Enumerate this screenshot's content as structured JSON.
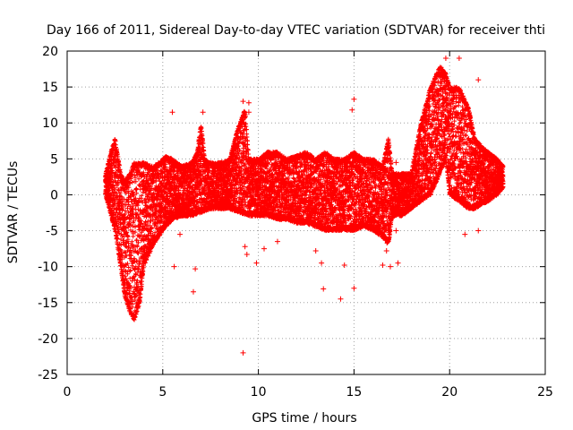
{
  "chart_data": {
    "type": "scatter",
    "title": "Day 166 of 2011, Sidereal Day-to-day VTEC variation (SDTVAR) for receiver thti",
    "xlabel": "GPS time / hours",
    "ylabel": "SDTVAR / TECUs",
    "xlim": [
      0,
      25
    ],
    "ylim": [
      -25,
      20
    ],
    "xticks": [
      0,
      5,
      10,
      15,
      20,
      25
    ],
    "yticks": [
      -25,
      -20,
      -15,
      -10,
      -5,
      0,
      5,
      10,
      15,
      20
    ],
    "grid": true,
    "marker": "+",
    "series": [
      {
        "name": "SDTVAR",
        "color": "#ff0000",
        "upper_envelope": [
          [
            2.0,
            3
          ],
          [
            2.3,
            6
          ],
          [
            2.5,
            8
          ],
          [
            2.8,
            3
          ],
          [
            3.0,
            2
          ],
          [
            3.3,
            3
          ],
          [
            3.5,
            4.5
          ],
          [
            4.0,
            4.5
          ],
          [
            4.5,
            4
          ],
          [
            4.8,
            4.5
          ],
          [
            5.0,
            5
          ],
          [
            5.2,
            5.5
          ],
          [
            5.5,
            5
          ],
          [
            6.0,
            4
          ],
          [
            6.5,
            4.5
          ],
          [
            6.8,
            6
          ],
          [
            7.0,
            10
          ],
          [
            7.2,
            5
          ],
          [
            7.5,
            4.5
          ],
          [
            8.0,
            4.5
          ],
          [
            8.5,
            5
          ],
          [
            8.8,
            8
          ],
          [
            9.0,
            10
          ],
          [
            9.3,
            12
          ],
          [
            9.5,
            5
          ],
          [
            10.0,
            5
          ],
          [
            10.5,
            6
          ],
          [
            11.0,
            6
          ],
          [
            11.5,
            5
          ],
          [
            12.0,
            5.5
          ],
          [
            12.5,
            6
          ],
          [
            13.0,
            5
          ],
          [
            13.5,
            6
          ],
          [
            14.0,
            5
          ],
          [
            14.5,
            5
          ],
          [
            15.0,
            6
          ],
          [
            15.5,
            5
          ],
          [
            16.0,
            5
          ],
          [
            16.5,
            4
          ],
          [
            16.8,
            8
          ],
          [
            17.0,
            3
          ],
          [
            17.5,
            3
          ],
          [
            18.0,
            3
          ],
          [
            18.5,
            10
          ],
          [
            19.0,
            15
          ],
          [
            19.5,
            18
          ],
          [
            19.8,
            17
          ],
          [
            20.0,
            15
          ],
          [
            20.5,
            15
          ],
          [
            21.0,
            12
          ],
          [
            21.3,
            8
          ],
          [
            21.6,
            7
          ],
          [
            22.0,
            6
          ],
          [
            22.5,
            5
          ],
          [
            22.8,
            4
          ]
        ],
        "lower_envelope": [
          [
            2.0,
            0
          ],
          [
            2.3,
            -3
          ],
          [
            2.5,
            -5
          ],
          [
            2.8,
            -10
          ],
          [
            3.0,
            -14
          ],
          [
            3.3,
            -16.5
          ],
          [
            3.5,
            -17.5
          ],
          [
            3.8,
            -15
          ],
          [
            4.0,
            -10
          ],
          [
            4.5,
            -7
          ],
          [
            5.0,
            -5
          ],
          [
            5.5,
            -3.5
          ],
          [
            6.0,
            -3
          ],
          [
            6.5,
            -3
          ],
          [
            7.0,
            -2.5
          ],
          [
            7.5,
            -2
          ],
          [
            8.0,
            -2
          ],
          [
            8.5,
            -2
          ],
          [
            9.0,
            -2.5
          ],
          [
            9.5,
            -3
          ],
          [
            10.0,
            -3
          ],
          [
            10.5,
            -3
          ],
          [
            11.0,
            -3.5
          ],
          [
            11.5,
            -3.5
          ],
          [
            12.0,
            -4
          ],
          [
            12.5,
            -4
          ],
          [
            13.0,
            -4.5
          ],
          [
            13.5,
            -5
          ],
          [
            14.0,
            -5
          ],
          [
            14.5,
            -5
          ],
          [
            15.0,
            -5
          ],
          [
            15.5,
            -4.5
          ],
          [
            16.0,
            -5
          ],
          [
            16.5,
            -6
          ],
          [
            16.8,
            -7
          ],
          [
            17.0,
            -3
          ],
          [
            17.5,
            -3
          ],
          [
            18.0,
            -2
          ],
          [
            18.5,
            -1
          ],
          [
            19.0,
            0
          ],
          [
            19.5,
            3
          ],
          [
            19.8,
            5
          ],
          [
            20.0,
            0
          ],
          [
            20.5,
            -1
          ],
          [
            21.0,
            -2
          ],
          [
            21.3,
            -2
          ],
          [
            21.6,
            -1.5
          ],
          [
            22.0,
            -1
          ],
          [
            22.5,
            0
          ],
          [
            22.8,
            1
          ]
        ],
        "outliers": [
          [
            5.5,
            11.5
          ],
          [
            7.1,
            11.5
          ],
          [
            9.2,
            13
          ],
          [
            9.5,
            12.8
          ],
          [
            9.5,
            11.5
          ],
          [
            15.0,
            13.3
          ],
          [
            14.9,
            11.8
          ],
          [
            19.8,
            19
          ],
          [
            20.5,
            19
          ],
          [
            21.5,
            16
          ],
          [
            9.2,
            -22
          ],
          [
            6.6,
            -13.5
          ],
          [
            6.7,
            -10.3
          ],
          [
            5.6,
            -10
          ],
          [
            9.9,
            -9.5
          ],
          [
            10.3,
            -7.5
          ],
          [
            9.3,
            -7.2
          ],
          [
            9.4,
            -8.3
          ],
          [
            11.0,
            -6.5
          ],
          [
            13.0,
            -7.8
          ],
          [
            13.3,
            -9.5
          ],
          [
            13.4,
            -13.1
          ],
          [
            14.3,
            -14.5
          ],
          [
            14.5,
            -9.8
          ],
          [
            15.0,
            -13.0
          ],
          [
            16.5,
            -9.8
          ],
          [
            16.9,
            -10
          ],
          [
            17.3,
            -9.5
          ],
          [
            16.7,
            -7.8
          ],
          [
            17.2,
            4.5
          ],
          [
            17.5,
            2
          ],
          [
            18.0,
            2
          ],
          [
            17.2,
            -5
          ],
          [
            21.5,
            -5
          ],
          [
            20.8,
            -5.5
          ],
          [
            5.9,
            -5.5
          ]
        ]
      }
    ]
  }
}
